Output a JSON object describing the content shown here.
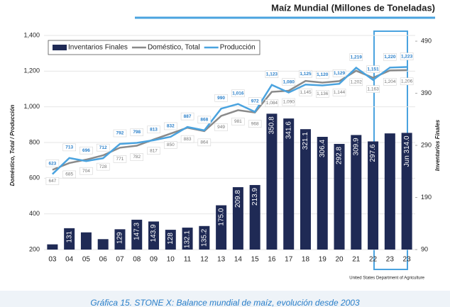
{
  "chart_data": {
    "type": "combo",
    "title": "Maíz Mundial (Millones de Toneladas)",
    "y_label": "Doméstico, Total / Producción",
    "y2_label": "Inventarios Finales",
    "source": "United States Department of Agriculture",
    "caption": "Gráfica 15. STONE X: Balance mundial de maíz, evolución desde 2003",
    "categories": [
      "03",
      "04",
      "05",
      "06",
      "07",
      "08",
      "09",
      "10",
      "11",
      "12",
      "13",
      "14",
      "15",
      "16",
      "17",
      "18",
      "19",
      "20",
      "21",
      "22",
      "23",
      "23"
    ],
    "ylim": [
      200,
      1400
    ],
    "yticks": [
      200,
      400,
      600,
      800,
      {
        "value": 1000,
        "label": "1,000"
      },
      {
        "value": 1200,
        "label": "1,200"
      },
      {
        "value": 1400,
        "label": "1,400"
      }
    ],
    "y2lim": [
      90,
      501
    ],
    "y2ticks": [
      90,
      190,
      290,
      390,
      490
    ],
    "legend": "top-left",
    "series": [
      {
        "name": "Inventarios Finales",
        "type": "bar",
        "axis": "y2",
        "color": "#1f2a55",
        "values": [
          100,
          131,
          123,
          110,
          129,
          147.3,
          143.9,
          128,
          132.1,
          135.2,
          175.0,
          209.8,
          213.9,
          350.8,
          341.6,
          321.1,
          306.4,
          292.8,
          309.9,
          297.6,
          313,
          314.0
        ],
        "value_labels": [
          null,
          "131",
          null,
          null,
          "129",
          "147.3",
          "143.9",
          "128",
          "132.1",
          "135.2",
          "175.0",
          "209.8",
          "213.9",
          "350.8",
          "341.6",
          "321.1",
          "306.4",
          "292.8",
          "309.9",
          "297.6",
          null,
          "Jun 314.0"
        ]
      },
      {
        "name": "Doméstico, Total",
        "type": "line",
        "color": "#8a8a8a",
        "values": [
          647,
          685,
          704,
          728,
          771,
          782,
          817,
          850,
          883,
          864,
          949,
          981,
          968,
          1084,
          1090,
          1145,
          1136,
          1144,
          1202,
          1163,
          1204,
          1206
        ],
        "value_labels": [
          "647",
          "685",
          "704",
          "728",
          "771",
          "782",
          "817",
          "850",
          "883",
          "864",
          "949",
          "981",
          "968",
          "1,084",
          "1,090",
          "1,145",
          "1,136",
          "1,144",
          "1,202",
          "1,163",
          "1,204",
          "1,206"
        ]
      },
      {
        "name": "Producción",
        "type": "line",
        "color": "#4aa3df",
        "values": [
          623,
          713,
          696,
          712,
          792,
          798,
          813,
          832,
          887,
          868,
          990,
          1016,
          972,
          1123,
          1080,
          1125,
          1120,
          1129,
          1219,
          1151,
          1220,
          1223
        ],
        "value_labels": [
          "623",
          "713",
          "696",
          "712",
          "792",
          "798",
          "813",
          "832",
          "887",
          "868",
          "990",
          "1,016",
          "972",
          "1,123",
          "1,080",
          "1,125",
          "1,120",
          "1,129",
          "1,219",
          "1,151",
          "1,220",
          "1,223"
        ]
      }
    ]
  }
}
